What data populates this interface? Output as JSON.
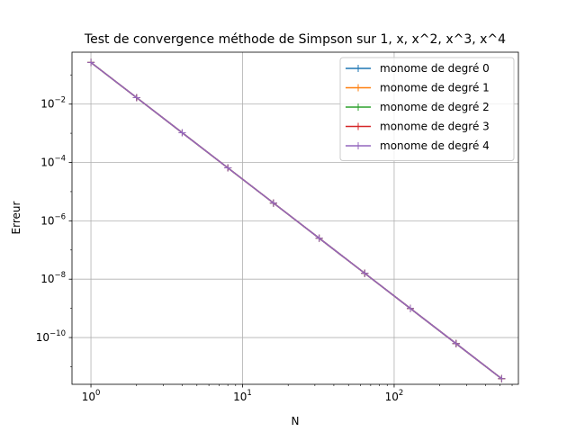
{
  "chart_data": {
    "type": "line",
    "title": "Test de convergence méthode de Simpson sur 1, x, x^2, x^3, x^4",
    "xlabel": "N",
    "ylabel": "Erreur",
    "xscale": "log",
    "yscale": "log",
    "xlim": [
      0.75,
      660
    ],
    "ylim": [
      2.5e-12,
      0.6
    ],
    "grid": true,
    "legend_position": "top-right",
    "x_ticks": [
      {
        "value": 1,
        "base": "10",
        "exp": "0"
      },
      {
        "value": 10,
        "base": "10",
        "exp": "1"
      },
      {
        "value": 100,
        "base": "10",
        "exp": "2"
      }
    ],
    "y_ticks": [
      {
        "value": 1e-10,
        "base": "10",
        "exp": "−10"
      },
      {
        "value": 1e-08,
        "base": "10",
        "exp": "−8"
      },
      {
        "value": 1e-06,
        "base": "10",
        "exp": "−6"
      },
      {
        "value": 0.0001,
        "base": "10",
        "exp": "−4"
      },
      {
        "value": 0.01,
        "base": "10",
        "exp": "−2"
      }
    ],
    "x": [
      1,
      2,
      4,
      8,
      16,
      32,
      64,
      128,
      256,
      512
    ],
    "series": [
      {
        "name": "monome de degré 0",
        "color": "#1f77b4",
        "values": [
          0.2667,
          0.01667,
          0.001042,
          6.51e-05,
          4.07e-06,
          2.54e-07,
          1.59e-08,
          9.93e-10,
          6.21e-11,
          3.88e-12
        ]
      },
      {
        "name": "monome de degré 1",
        "color": "#ff7f0e",
        "values": [
          0.2667,
          0.01667,
          0.001042,
          6.51e-05,
          4.07e-06,
          2.54e-07,
          1.59e-08,
          9.93e-10,
          6.21e-11,
          3.88e-12
        ]
      },
      {
        "name": "monome de degré 2",
        "color": "#2ca02c",
        "values": [
          0.2667,
          0.01667,
          0.001042,
          6.51e-05,
          4.07e-06,
          2.54e-07,
          1.59e-08,
          9.93e-10,
          6.21e-11,
          3.88e-12
        ]
      },
      {
        "name": "monome de degré 3",
        "color": "#d62728",
        "values": [
          0.2667,
          0.01667,
          0.001042,
          6.51e-05,
          4.07e-06,
          2.54e-07,
          1.59e-08,
          9.93e-10,
          6.21e-11,
          3.88e-12
        ]
      },
      {
        "name": "monome de degré 4",
        "color": "#9467bd",
        "values": [
          0.2667,
          0.01667,
          0.001042,
          6.51e-05,
          4.07e-06,
          2.54e-07,
          1.59e-08,
          9.93e-10,
          6.21e-11,
          3.88e-12
        ]
      }
    ]
  }
}
